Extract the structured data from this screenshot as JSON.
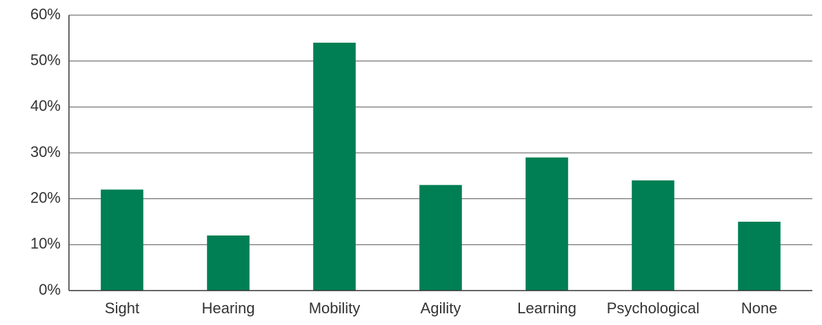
{
  "chart_data": {
    "type": "bar",
    "categories": [
      "Sight",
      "Hearing",
      "Mobility",
      "Agility",
      "Learning",
      "Psychological",
      "None"
    ],
    "values": [
      22,
      12,
      54,
      23,
      29,
      24,
      15
    ],
    "color": "#007f54",
    "ylim": [
      0,
      60
    ],
    "yticks": [
      {
        "value": 0,
        "label": "0%"
      },
      {
        "value": 10,
        "label": "10%"
      },
      {
        "value": 20,
        "label": "20%"
      },
      {
        "value": 30,
        "label": "30%"
      },
      {
        "value": 40,
        "label": "40%"
      },
      {
        "value": 50,
        "label": "50%"
      },
      {
        "value": 60,
        "label": "60%"
      }
    ],
    "grid": true
  }
}
